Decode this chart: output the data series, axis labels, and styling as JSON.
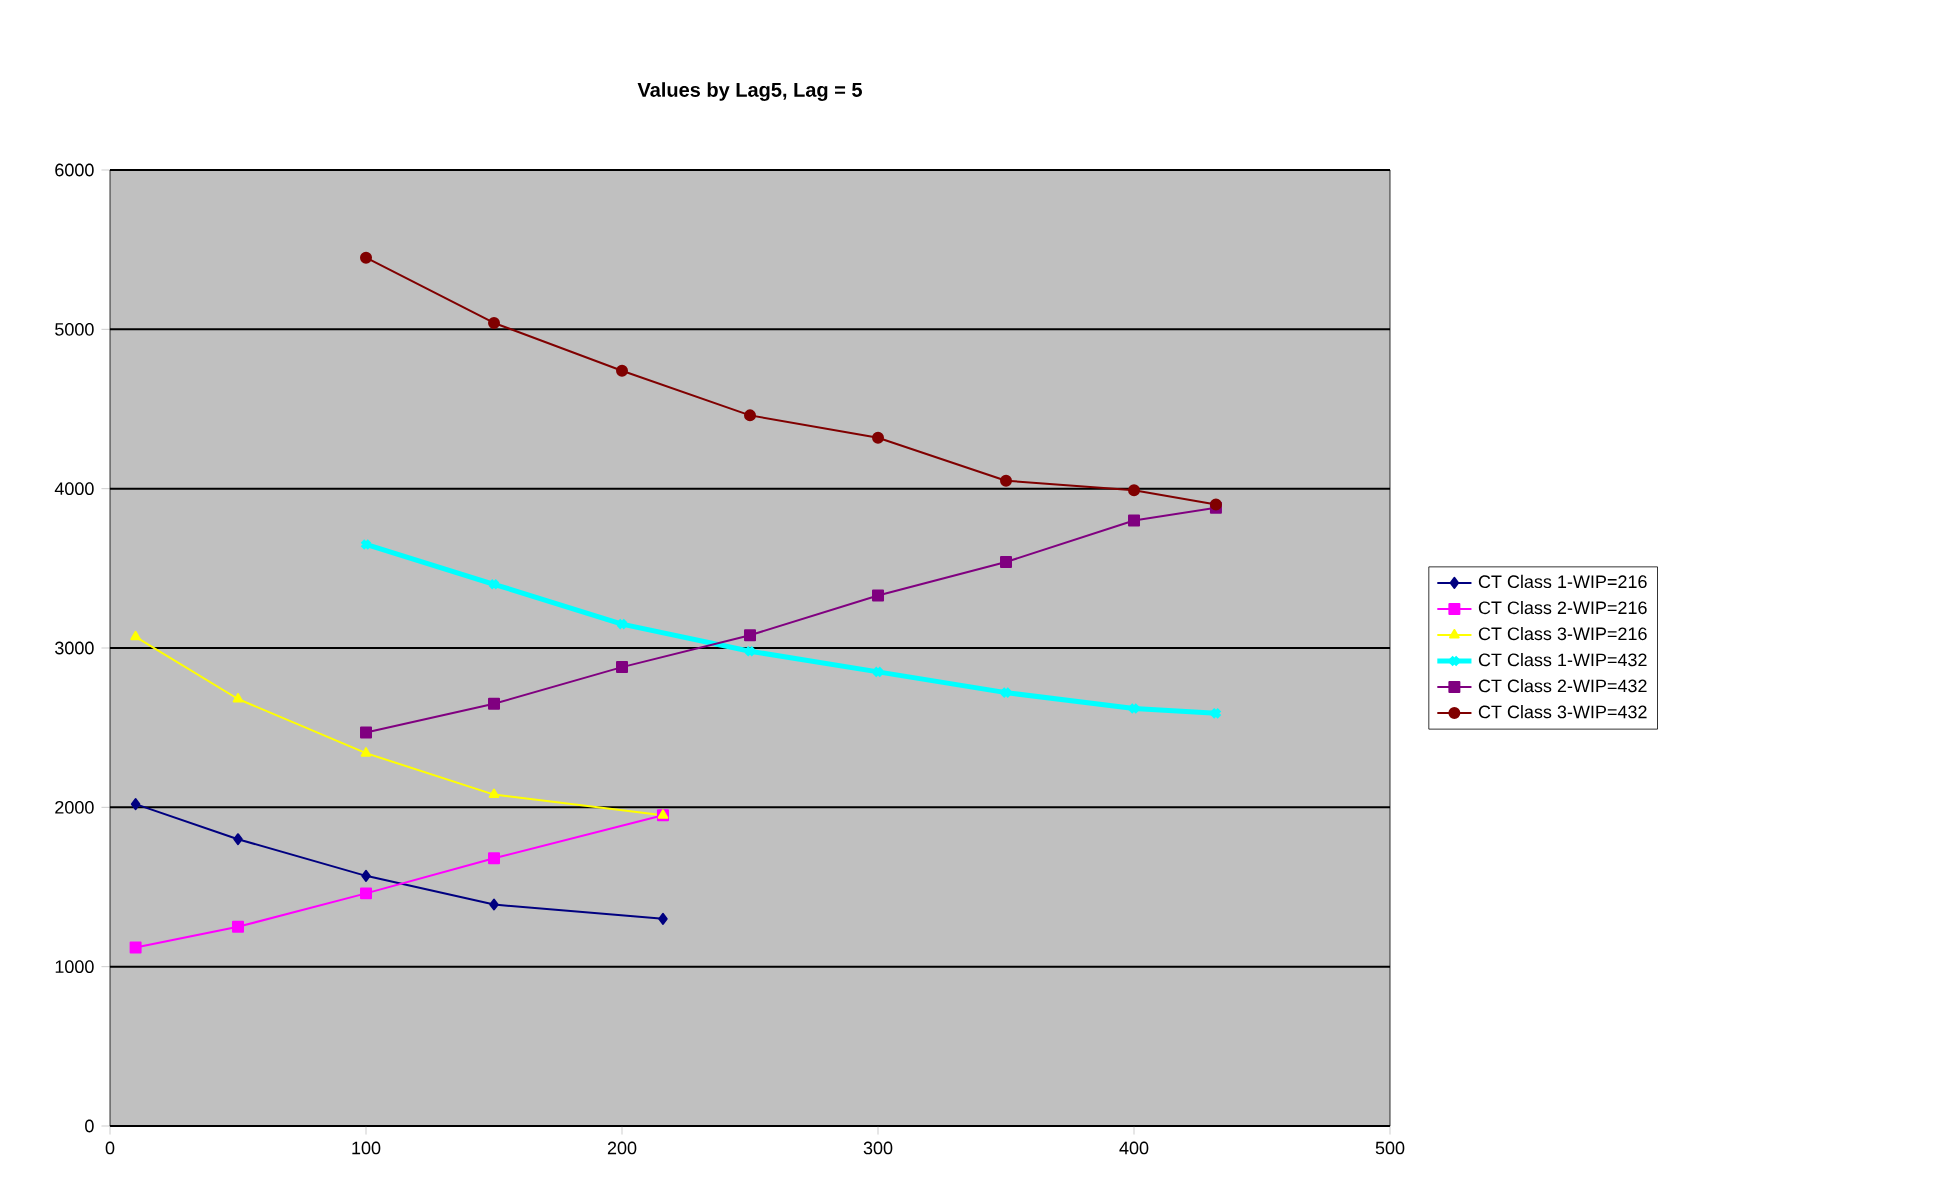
{
  "chart_data": {
    "type": "line",
    "title": "Values by Lag5, Lag = 5",
    "xlim": [
      0,
      500
    ],
    "xticks": [
      0,
      100,
      200,
      300,
      400,
      500
    ],
    "ylim": [
      0,
      6000
    ],
    "yticks": [
      0,
      1000,
      2000,
      3000,
      4000,
      5000,
      6000
    ],
    "grid": "y",
    "legend": "right",
    "series": [
      {
        "name": "CT Class 1-WIP=216",
        "color": "#000080",
        "marker": "diamond",
        "x": [
          10,
          50,
          100,
          150,
          216
        ],
        "values": [
          2020,
          1800,
          1570,
          1390,
          1300
        ]
      },
      {
        "name": "CT Class 2-WIP=216",
        "color": "#ff00ff",
        "marker": "square",
        "x": [
          10,
          50,
          100,
          150,
          216
        ],
        "values": [
          1120,
          1250,
          1460,
          1680,
          1950
        ]
      },
      {
        "name": "CT Class 3-WIP=216",
        "color": "#ffff00",
        "marker": "triangle",
        "x": [
          10,
          50,
          100,
          150,
          216
        ],
        "values": [
          3070,
          2680,
          2340,
          2080,
          1950
        ]
      },
      {
        "name": "CT Class 1-WIP=432",
        "color": "#00ffff",
        "marker": "cross",
        "x": [
          100,
          150,
          200,
          250,
          300,
          350,
          400,
          432
        ],
        "values": [
          3650,
          3400,
          3150,
          2980,
          2850,
          2720,
          2620,
          2590
        ]
      },
      {
        "name": "CT Class 2-WIP=432",
        "color": "#800080",
        "marker": "square",
        "x": [
          100,
          150,
          200,
          250,
          300,
          350,
          400,
          432
        ],
        "values": [
          2470,
          2650,
          2880,
          3080,
          3330,
          3540,
          3800,
          3880
        ]
      },
      {
        "name": "CT Class 3-WIP=432",
        "color": "#800000",
        "marker": "circle",
        "x": [
          100,
          150,
          200,
          250,
          300,
          350,
          400,
          432
        ],
        "values": [
          5450,
          5040,
          4740,
          4460,
          4320,
          4050,
          3990,
          3900
        ]
      }
    ]
  }
}
